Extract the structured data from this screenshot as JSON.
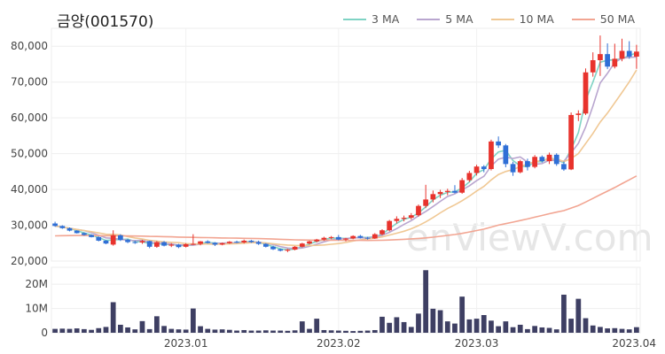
{
  "title": "금양(001570)",
  "watermark": "enViewV.com",
  "chart_data": {
    "type": "candlestick",
    "title": "금양(001570)",
    "price_axis": {
      "ylim": [
        20000,
        85000
      ],
      "ticks": [
        20000,
        30000,
        40000,
        50000,
        60000,
        70000,
        80000
      ],
      "tick_labels": [
        "20,000",
        "30,000",
        "40,000",
        "50,000",
        "60,000",
        "70,000",
        "80,000"
      ]
    },
    "volume_axis": {
      "ylim": [
        0,
        27000000
      ],
      "ticks": [
        0,
        10000000,
        20000000
      ],
      "tick_labels": [
        "0",
        "10M",
        "20M"
      ]
    },
    "x_labels": [
      {
        "index": 18,
        "label": "2023.01"
      },
      {
        "index": 39,
        "label": "2023.02"
      },
      {
        "index": 58,
        "label": "2023.03"
      },
      {
        "index": 80,
        "label": "2023.04"
      }
    ],
    "legend": [
      {
        "name": "3 MA",
        "color": "#7fd3c4"
      },
      {
        "name": "5 MA",
        "color": "#b9a6cf"
      },
      {
        "name": "10 MA",
        "color": "#f0c894"
      },
      {
        "name": "50 MA",
        "color": "#f2a592"
      }
    ],
    "up_color": "#e8332d",
    "down_color": "#2f6fd6",
    "volume_color": "#3e3f63",
    "ohlc": [
      [
        30500,
        31000,
        29600,
        29800
      ],
      [
        29800,
        30000,
        29000,
        29200
      ],
      [
        29200,
        29400,
        28300,
        28500
      ],
      [
        28500,
        28600,
        27700,
        27800
      ],
      [
        27800,
        28000,
        27100,
        27300
      ],
      [
        27300,
        27500,
        26600,
        26700
      ],
      [
        26700,
        26900,
        25500,
        25700
      ],
      [
        25700,
        25900,
        24700,
        24900
      ],
      [
        24600,
        28600,
        24300,
        27200
      ],
      [
        27200,
        27500,
        25600,
        25900
      ],
      [
        25900,
        26200,
        25000,
        25300
      ],
      [
        25300,
        25700,
        24800,
        25200
      ],
      [
        25200,
        25900,
        24800,
        25600
      ],
      [
        25600,
        25700,
        23600,
        24000
      ],
      [
        24000,
        25600,
        23700,
        25300
      ],
      [
        25300,
        25600,
        24100,
        24300
      ],
      [
        24300,
        25000,
        23900,
        24600
      ],
      [
        24600,
        24800,
        23600,
        23900
      ],
      [
        24000,
        25000,
        23800,
        24700
      ],
      [
        24700,
        27500,
        24500,
        24800
      ],
      [
        24800,
        25600,
        24400,
        25500
      ],
      [
        25500,
        25800,
        24900,
        25100
      ],
      [
        25100,
        25300,
        24200,
        24600
      ],
      [
        24600,
        25200,
        24400,
        25000
      ],
      [
        25000,
        25600,
        24800,
        25400
      ],
      [
        25400,
        25700,
        25000,
        25200
      ],
      [
        25200,
        26000,
        24900,
        25700
      ],
      [
        25700,
        25900,
        25100,
        25300
      ],
      [
        25300,
        25700,
        24500,
        24800
      ],
      [
        24800,
        25000,
        23800,
        24000
      ],
      [
        24000,
        24300,
        23100,
        23300
      ],
      [
        23300,
        23500,
        22700,
        22900
      ],
      [
        22900,
        23400,
        22500,
        23200
      ],
      [
        23200,
        24200,
        23000,
        24000
      ],
      [
        24000,
        25100,
        23800,
        24900
      ],
      [
        24900,
        25700,
        24600,
        25500
      ],
      [
        25500,
        26200,
        25200,
        26000
      ],
      [
        26000,
        26800,
        25700,
        26500
      ],
      [
        26500,
        27000,
        26100,
        26700
      ],
      [
        26700,
        27300,
        25800,
        26000
      ],
      [
        26000,
        26500,
        25500,
        26300
      ],
      [
        26300,
        27200,
        26100,
        27000
      ],
      [
        27000,
        27300,
        26300,
        26500
      ],
      [
        26500,
        26800,
        26000,
        26300
      ],
      [
        26300,
        27800,
        26200,
        27500
      ],
      [
        27500,
        28900,
        27200,
        28600
      ],
      [
        28600,
        31500,
        28300,
        31200
      ],
      [
        31200,
        32500,
        30500,
        31800
      ],
      [
        31800,
        32700,
        31100,
        32100
      ],
      [
        32100,
        33400,
        31600,
        32800
      ],
      [
        32800,
        35800,
        32400,
        35400
      ],
      [
        35400,
        41300,
        34800,
        37200
      ],
      [
        37200,
        39700,
        36400,
        38700
      ],
      [
        38700,
        39900,
        37600,
        39300
      ],
      [
        39300,
        40200,
        38400,
        39600
      ],
      [
        39600,
        41200,
        38900,
        39100
      ],
      [
        39100,
        43200,
        38800,
        42600
      ],
      [
        42600,
        45200,
        42100,
        44600
      ],
      [
        44600,
        46900,
        43900,
        46400
      ],
      [
        46400,
        46800,
        44800,
        45700
      ],
      [
        45700,
        53900,
        45300,
        53400
      ],
      [
        53400,
        54800,
        51600,
        52300
      ],
      [
        52300,
        52700,
        46200,
        47100
      ],
      [
        47100,
        47700,
        43800,
        44800
      ],
      [
        44800,
        48300,
        44500,
        47900
      ],
      [
        47900,
        48600,
        45300,
        46300
      ],
      [
        46300,
        49600,
        45900,
        49100
      ],
      [
        49100,
        49500,
        47500,
        47900
      ],
      [
        47900,
        50300,
        47100,
        49700
      ],
      [
        49700,
        50100,
        46600,
        47100
      ],
      [
        47100,
        47800,
        45200,
        45600
      ],
      [
        45600,
        61500,
        45400,
        60800
      ],
      [
        60800,
        62100,
        59100,
        61200
      ],
      [
        61200,
        73800,
        60800,
        72700
      ],
      [
        72700,
        78300,
        71500,
        76100
      ],
      [
        76100,
        83000,
        71700,
        77800
      ],
      [
        77800,
        80800,
        73600,
        74300
      ],
      [
        74300,
        80700,
        73800,
        76500
      ],
      [
        76500,
        82100,
        75800,
        78700
      ],
      [
        78700,
        81400,
        76500,
        77100
      ],
      [
        77100,
        80400,
        73700,
        78500
      ]
    ],
    "volume": [
      1600000,
      1700000,
      1600000,
      1800000,
      1500000,
      1200000,
      1900000,
      2400000,
      12600000,
      3300000,
      2200000,
      1400000,
      4800000,
      1500000,
      6800000,
      2800000,
      1600000,
      1400000,
      1300000,
      10000000,
      2700000,
      1600000,
      1300000,
      1400000,
      1200000,
      900000,
      1100000,
      900000,
      900000,
      1000000,
      900000,
      900000,
      800000,
      1000000,
      4700000,
      1600000,
      5800000,
      1100000,
      1000000,
      900000,
      800000,
      700000,
      800000,
      900000,
      1100000,
      6600000,
      4100000,
      6400000,
      4400000,
      2400000,
      7900000,
      25800000,
      9900000,
      9300000,
      4700000,
      3800000,
      14900000,
      5500000,
      5800000,
      7300000,
      5000000,
      2700000,
      4700000,
      2300000,
      3300000,
      1500000,
      2800000,
      2200000,
      2000000,
      1400000,
      15700000,
      5800000,
      14000000,
      6000000,
      3000000,
      2400000,
      1800000,
      1900000,
      1600000,
      1400000,
      2300000
    ]
  }
}
